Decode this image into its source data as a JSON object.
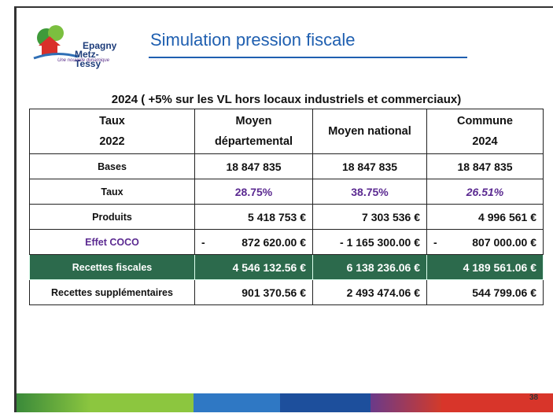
{
  "header": {
    "logo_line1": "Epagny",
    "logo_line2": "Metz-Tessy",
    "logo_tagline": "Une nouvelle dynamique",
    "title": "Simulation pression fiscale"
  },
  "table": {
    "caption": "2024 ( +5% sur les VL hors locaux industriels et commerciaux)",
    "columns": [
      [
        "Taux",
        "2022"
      ],
      [
        "Moyen",
        "départemental"
      ],
      [
        "Moyen national"
      ],
      [
        "Commune",
        "2024"
      ]
    ],
    "rows": [
      [
        "Bases",
        "18 847 835",
        "18 847 835",
        "18 847 835"
      ],
      [
        "Taux",
        "28.75%",
        "38.75%",
        "26.51%"
      ],
      [
        "Produits",
        "5 418 753 €",
        "7 303 536 €",
        "4 996 561 €"
      ],
      [
        "Effet COCO",
        [
          "-",
          "872 620.00 €"
        ],
        "- 1 165 300.00 €",
        [
          "-",
          "807 000.00 €"
        ]
      ],
      [
        "Recettes fiscales",
        "4 546 132.56 €",
        "6 138 236.06 €",
        "4 189 561.06 €"
      ],
      [
        "Recettes supplémentaires",
        "901 370.56 €",
        "2 493 474.06 €",
        "544 799.06 €"
      ]
    ]
  },
  "footer": {
    "page_number": "38"
  }
}
